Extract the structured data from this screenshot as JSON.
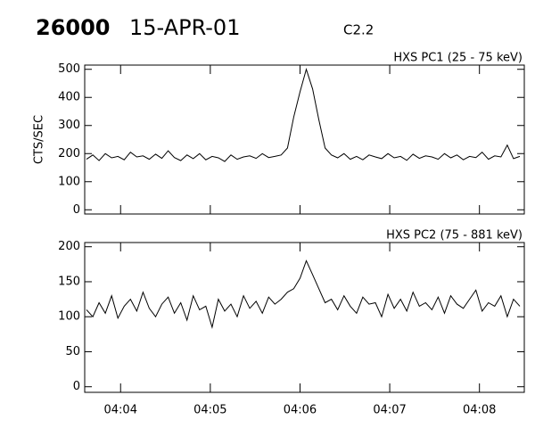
{
  "header": {
    "number": "26000",
    "date": "15-APR-01",
    "class": "C2.2"
  },
  "chart_data": [
    {
      "type": "line",
      "title": "HXS PC1 (25 - 75 keV)",
      "y_label": "CTS/SEC",
      "color": "#000000",
      "x": [
        243.62,
        243.69,
        243.76,
        243.83,
        243.9,
        243.97,
        244.04,
        244.11,
        244.18,
        244.25,
        244.32,
        244.39,
        244.46,
        244.53,
        244.6,
        244.67,
        244.74,
        244.81,
        244.88,
        244.95,
        245.02,
        245.09,
        245.16,
        245.23,
        245.3,
        245.37,
        245.44,
        245.51,
        245.58,
        245.65,
        245.72,
        245.79,
        245.86,
        245.93,
        246,
        246.07,
        246.14,
        246.21,
        246.28,
        246.35,
        246.42,
        246.49,
        246.56,
        246.63,
        246.7,
        246.77,
        246.84,
        246.91,
        246.98,
        247.05,
        247.12,
        247.19,
        247.26,
        247.33,
        247.4,
        247.47,
        247.54,
        247.61,
        247.68,
        247.75,
        247.82,
        247.89,
        247.96,
        248.03,
        248.1,
        248.17,
        248.24,
        248.31,
        248.38,
        248.45
      ],
      "values": [
        180,
        195,
        175,
        200,
        185,
        190,
        178,
        205,
        188,
        192,
        180,
        198,
        183,
        210,
        186,
        175,
        195,
        182,
        200,
        178,
        190,
        185,
        172,
        195,
        180,
        188,
        192,
        183,
        200,
        186,
        190,
        195,
        220,
        330,
        420,
        500,
        430,
        320,
        220,
        195,
        185,
        200,
        180,
        190,
        178,
        195,
        188,
        182,
        200,
        185,
        190,
        176,
        198,
        183,
        192,
        188,
        180,
        200,
        185,
        195,
        178,
        190,
        186,
        205,
        180,
        192,
        188,
        230,
        182,
        190
      ],
      "xlim": [
        243.6,
        248.5
      ],
      "xticks": [
        244,
        245,
        246,
        247,
        248
      ],
      "ylim": [
        -15,
        515
      ],
      "yticks": [
        0,
        100,
        200,
        300,
        400,
        500
      ]
    },
    {
      "type": "line",
      "title": "HXS PC2 (75 - 881 keV)",
      "color": "#000000",
      "x": [
        243.62,
        243.69,
        243.76,
        243.83,
        243.9,
        243.97,
        244.04,
        244.11,
        244.18,
        244.25,
        244.32,
        244.39,
        244.46,
        244.53,
        244.6,
        244.67,
        244.74,
        244.81,
        244.88,
        244.95,
        245.02,
        245.09,
        245.16,
        245.23,
        245.3,
        245.37,
        245.44,
        245.51,
        245.58,
        245.65,
        245.72,
        245.79,
        245.86,
        245.93,
        246,
        246.07,
        246.14,
        246.21,
        246.28,
        246.35,
        246.42,
        246.49,
        246.56,
        246.63,
        246.7,
        246.77,
        246.84,
        246.91,
        246.98,
        247.05,
        247.12,
        247.19,
        247.26,
        247.33,
        247.4,
        247.47,
        247.54,
        247.61,
        247.68,
        247.75,
        247.82,
        247.89,
        247.96,
        248.03,
        248.1,
        248.17,
        248.24,
        248.31,
        248.38,
        248.45
      ],
      "values": [
        110,
        100,
        120,
        105,
        130,
        98,
        115,
        125,
        108,
        135,
        112,
        100,
        118,
        128,
        105,
        120,
        95,
        130,
        110,
        115,
        85,
        125,
        108,
        118,
        100,
        130,
        112,
        122,
        105,
        128,
        118,
        125,
        135,
        140,
        155,
        180,
        160,
        140,
        120,
        125,
        110,
        130,
        115,
        105,
        128,
        118,
        120,
        100,
        132,
        112,
        125,
        108,
        135,
        115,
        120,
        110,
        128,
        105,
        130,
        118,
        112,
        125,
        138,
        108,
        120,
        115,
        130,
        100,
        125,
        115
      ],
      "xlim": [
        243.6,
        248.5
      ],
      "xticks": [
        {
          "value": 244,
          "label": "04:04"
        },
        {
          "value": 245,
          "label": "04:05"
        },
        {
          "value": 246,
          "label": "04:06"
        },
        {
          "value": 247,
          "label": "04:07"
        },
        {
          "value": 248,
          "label": "04:08"
        }
      ],
      "ylim": [
        -8,
        206
      ],
      "yticks": [
        0,
        50,
        100,
        150,
        200
      ]
    }
  ]
}
